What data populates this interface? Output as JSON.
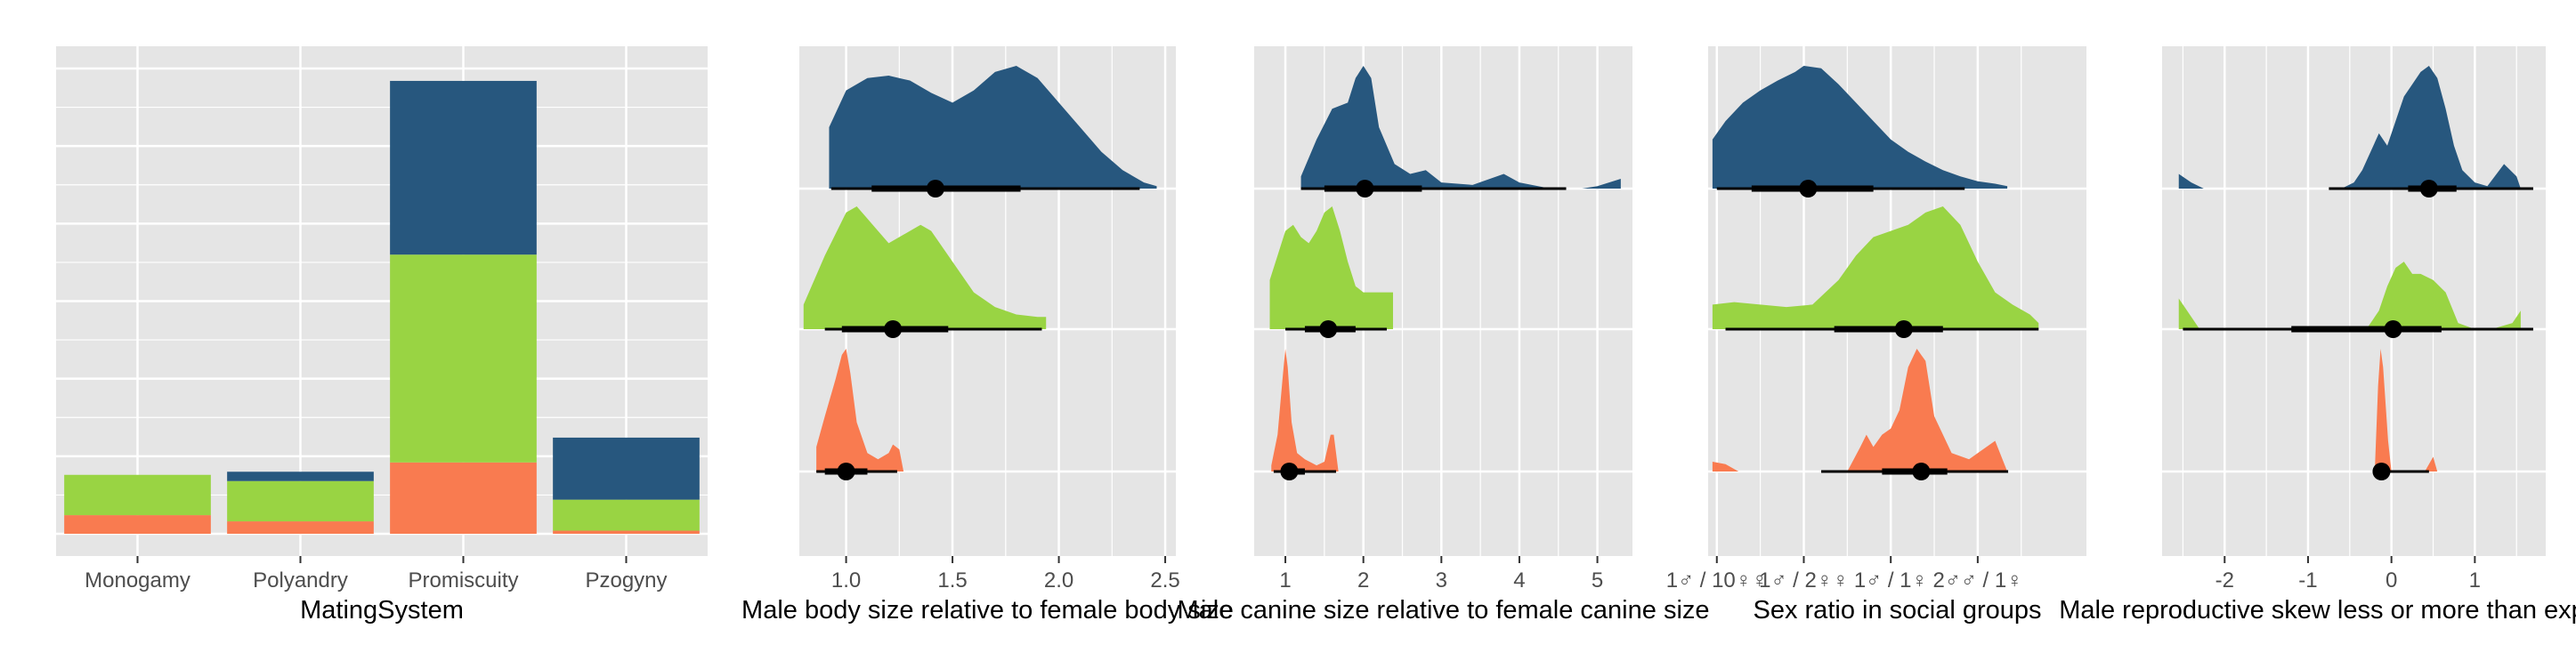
{
  "colors": {
    "panel_bg": "#e5e5e5",
    "grid": "#ffffff",
    "text": "#4d4d4d",
    "title": "#000000"
  },
  "chart_data": [
    {
      "type": "bar",
      "stacked": true,
      "xlabel": "MatingSystem",
      "categories": [
        "Monogamy",
        "Polyandry",
        "Promiscuity",
        "Pzogyny"
      ],
      "ylim": [
        0,
        30
      ],
      "series": [
        {
          "color": "#f97b50",
          "values": [
            1.2,
            0.8,
            4.6,
            0.2
          ]
        },
        {
          "color": "#99d443",
          "values": [
            2.6,
            2.6,
            13.4,
            2.0
          ]
        },
        {
          "color": "#27577e",
          "values": [
            0,
            0.6,
            11.2,
            4.0
          ]
        }
      ],
      "grid": true,
      "legend": "none"
    },
    {
      "type": "area",
      "subtype": "density-halfeye",
      "xlabel": "Male body size relative to female body size",
      "xlim": [
        0.78,
        2.55
      ],
      "xticks": [
        {
          "value": 1.0,
          "label": "1.0"
        },
        {
          "value": 1.5,
          "label": "1.5"
        },
        {
          "value": 2.0,
          "label": "2.0"
        },
        {
          "value": 2.5,
          "label": "2.5"
        }
      ],
      "series": [
        {
          "color": "#27577e",
          "density_x": [
            0.92,
            1.0,
            1.1,
            1.2,
            1.3,
            1.4,
            1.5,
            1.6,
            1.7,
            1.8,
            1.9,
            2.0,
            2.1,
            2.2,
            2.3,
            2.4,
            2.46
          ],
          "density_y": [
            0.5,
            0.8,
            0.9,
            0.92,
            0.88,
            0.78,
            0.7,
            0.8,
            0.95,
            1.0,
            0.9,
            0.7,
            0.5,
            0.3,
            0.15,
            0.05,
            0.02
          ],
          "point": 1.42,
          "inner": [
            1.12,
            1.82
          ],
          "outer": [
            0.93,
            2.38
          ]
        },
        {
          "color": "#99d443",
          "density_x": [
            0.8,
            0.9,
            1.0,
            1.05,
            1.1,
            1.2,
            1.3,
            1.35,
            1.4,
            1.5,
            1.6,
            1.7,
            1.8,
            1.9,
            1.94
          ],
          "density_y": [
            0.2,
            0.6,
            0.95,
            1.0,
            0.9,
            0.7,
            0.8,
            0.85,
            0.8,
            0.55,
            0.3,
            0.18,
            0.12,
            0.1,
            0.1
          ],
          "point": 1.22,
          "inner": [
            0.98,
            1.48
          ],
          "outer": [
            0.9,
            1.92
          ]
        },
        {
          "color": "#f97b50",
          "density_x": [
            0.86,
            0.9,
            0.95,
            0.98,
            1.0,
            1.02,
            1.05,
            1.1,
            1.15,
            1.2,
            1.22,
            1.25,
            1.27
          ],
          "density_y": [
            0.2,
            0.45,
            0.75,
            0.95,
            1.0,
            0.8,
            0.4,
            0.15,
            0.1,
            0.15,
            0.22,
            0.18,
            0.0
          ],
          "point": 1.0,
          "inner": [
            0.9,
            1.1
          ],
          "outer": [
            0.86,
            1.24
          ]
        }
      ]
    },
    {
      "type": "area",
      "subtype": "density-halfeye",
      "xlabel": "Male canine size relative to female canine size",
      "xlim": [
        0.6,
        5.45
      ],
      "xticks": [
        {
          "value": 1,
          "label": "1"
        },
        {
          "value": 2,
          "label": "2"
        },
        {
          "value": 3,
          "label": "3"
        },
        {
          "value": 4,
          "label": "4"
        },
        {
          "value": 5,
          "label": "5"
        }
      ],
      "series": [
        {
          "color": "#27577e",
          "density_x": [
            1.2,
            1.4,
            1.6,
            1.8,
            1.9,
            2.0,
            2.1,
            2.2,
            2.4,
            2.6,
            2.8,
            3.0,
            3.4,
            3.8,
            4.0,
            4.4,
            4.8,
            5.0,
            5.3
          ],
          "density_y": [
            0.1,
            0.4,
            0.65,
            0.7,
            0.9,
            1.0,
            0.9,
            0.5,
            0.2,
            0.12,
            0.15,
            0.05,
            0.03,
            0.12,
            0.05,
            0.0,
            0.0,
            0.02,
            0.08
          ],
          "point": 2.02,
          "inner": [
            1.5,
            2.75
          ],
          "outer": [
            1.2,
            4.6
          ]
        },
        {
          "color": "#99d443",
          "density_x": [
            0.8,
            0.9,
            1.0,
            1.1,
            1.2,
            1.3,
            1.4,
            1.5,
            1.6,
            1.7,
            1.8,
            1.9,
            2.0,
            2.2,
            2.38
          ],
          "density_y": [
            0.4,
            0.6,
            0.8,
            0.85,
            0.75,
            0.7,
            0.8,
            0.95,
            1.0,
            0.8,
            0.55,
            0.35,
            0.3,
            0.3,
            0.3
          ],
          "point": 1.55,
          "inner": [
            1.25,
            1.9
          ],
          "outer": [
            1.0,
            2.3
          ]
        },
        {
          "color": "#f97b50",
          "density_x": [
            0.82,
            0.9,
            0.97,
            1.0,
            1.03,
            1.08,
            1.15,
            1.25,
            1.4,
            1.5,
            1.58,
            1.62,
            1.68
          ],
          "density_y": [
            0.05,
            0.3,
            0.8,
            1.0,
            0.85,
            0.4,
            0.15,
            0.1,
            0.05,
            0.08,
            0.3,
            0.3,
            0.0
          ],
          "point": 1.05,
          "inner": [
            0.95,
            1.25
          ],
          "outer": [
            0.85,
            1.65
          ]
        }
      ]
    },
    {
      "type": "area",
      "subtype": "density-halfeye",
      "xlabel": "Sex ratio in social groups",
      "xlim": [
        -0.1,
        4.25
      ],
      "xticks": [
        {
          "value": 0,
          "label": "1♂ / 10♀♀"
        },
        {
          "value": 1,
          "label": "1♂ / 2♀♀"
        },
        {
          "value": 2,
          "label": "1♂ / 1♀"
        },
        {
          "value": 3,
          "label": "2♂♂ / 1♀"
        }
      ],
      "series": [
        {
          "color": "#27577e",
          "density_x": [
            -0.05,
            0.1,
            0.3,
            0.5,
            0.7,
            0.9,
            1.0,
            1.2,
            1.4,
            1.6,
            1.8,
            2.0,
            2.2,
            2.4,
            2.6,
            2.8,
            3.0,
            3.2,
            3.34
          ],
          "density_y": [
            0.4,
            0.55,
            0.7,
            0.8,
            0.88,
            0.95,
            1.0,
            0.98,
            0.85,
            0.7,
            0.55,
            0.4,
            0.3,
            0.22,
            0.15,
            0.1,
            0.06,
            0.04,
            0.02
          ],
          "point": 1.05,
          "inner": [
            0.4,
            1.8
          ],
          "outer": [
            0.0,
            2.85
          ]
        },
        {
          "color": "#99d443",
          "density_x": [
            -0.05,
            0.2,
            0.5,
            0.8,
            1.1,
            1.4,
            1.6,
            1.8,
            2.0,
            2.2,
            2.4,
            2.6,
            2.8,
            3.0,
            3.2,
            3.4,
            3.6,
            3.7
          ],
          "density_y": [
            0.2,
            0.22,
            0.2,
            0.18,
            0.2,
            0.4,
            0.6,
            0.75,
            0.8,
            0.85,
            0.95,
            1.0,
            0.85,
            0.55,
            0.3,
            0.2,
            0.12,
            0.05
          ],
          "point": 2.15,
          "inner": [
            1.35,
            2.6
          ],
          "outer": [
            0.1,
            3.7
          ]
        },
        {
          "color": "#f97b50",
          "density_x": [
            -0.05,
            0.1,
            0.25,
            1.5,
            1.65,
            1.72,
            1.8,
            1.9,
            2.0,
            2.1,
            2.2,
            2.3,
            2.4,
            2.5,
            2.7,
            2.9,
            3.2,
            3.34
          ],
          "density_y": [
            0.08,
            0.06,
            0.0,
            0.0,
            0.2,
            0.3,
            0.2,
            0.3,
            0.35,
            0.5,
            0.85,
            1.0,
            0.9,
            0.45,
            0.15,
            0.1,
            0.25,
            0.0
          ],
          "point": 2.35,
          "inner": [
            1.9,
            2.65
          ],
          "outer": [
            1.2,
            3.35
          ]
        }
      ]
    },
    {
      "type": "area",
      "subtype": "density-halfeye",
      "xlabel": "Male reproductive skew less or more than expected",
      "xlim": [
        -2.75,
        1.85
      ],
      "xticks": [
        {
          "value": -2,
          "label": "-2"
        },
        {
          "value": -1,
          "label": "-1"
        },
        {
          "value": 0,
          "label": "0"
        },
        {
          "value": 1,
          "label": "1"
        }
      ],
      "series": [
        {
          "color": "#27577e",
          "density_x": [
            -2.55,
            -2.4,
            -2.25,
            -0.6,
            -0.45,
            -0.35,
            -0.25,
            -0.15,
            -0.05,
            0.05,
            0.15,
            0.25,
            0.35,
            0.45,
            0.55,
            0.65,
            0.75,
            0.85,
            1.0,
            1.15,
            1.35,
            1.5,
            1.55
          ],
          "density_y": [
            0.12,
            0.05,
            0.0,
            0.0,
            0.05,
            0.15,
            0.3,
            0.45,
            0.35,
            0.55,
            0.75,
            0.85,
            0.95,
            1.0,
            0.9,
            0.65,
            0.35,
            0.15,
            0.05,
            0.02,
            0.2,
            0.1,
            0.0
          ],
          "point": 0.45,
          "inner": [
            0.2,
            0.78
          ],
          "outer": [
            -0.75,
            1.7
          ]
        },
        {
          "color": "#99d443",
          "density_x": [
            -2.55,
            -2.45,
            -2.3,
            -0.3,
            -0.15,
            -0.05,
            0.05,
            0.15,
            0.25,
            0.35,
            0.5,
            0.65,
            0.8,
            1.0,
            1.2,
            1.45,
            1.55
          ],
          "density_y": [
            0.25,
            0.15,
            0.0,
            0.0,
            0.15,
            0.35,
            0.5,
            0.55,
            0.45,
            0.45,
            0.4,
            0.3,
            0.05,
            0.0,
            0.0,
            0.05,
            0.15
          ],
          "point": 0.02,
          "inner": [
            -1.2,
            0.6
          ],
          "outer": [
            -2.5,
            1.7
          ]
        },
        {
          "color": "#f97b50",
          "density_x": [
            -0.2,
            -0.16,
            -0.13,
            -0.1,
            -0.07,
            -0.04,
            0.0,
            0.4,
            0.5,
            0.55
          ],
          "density_y": [
            0.0,
            0.7,
            1.0,
            0.85,
            0.55,
            0.25,
            0.0,
            0.0,
            0.12,
            0.0
          ],
          "point": -0.12,
          "inner": [
            -0.18,
            -0.05
          ],
          "outer": [
            -0.22,
            0.45
          ]
        }
      ]
    }
  ]
}
